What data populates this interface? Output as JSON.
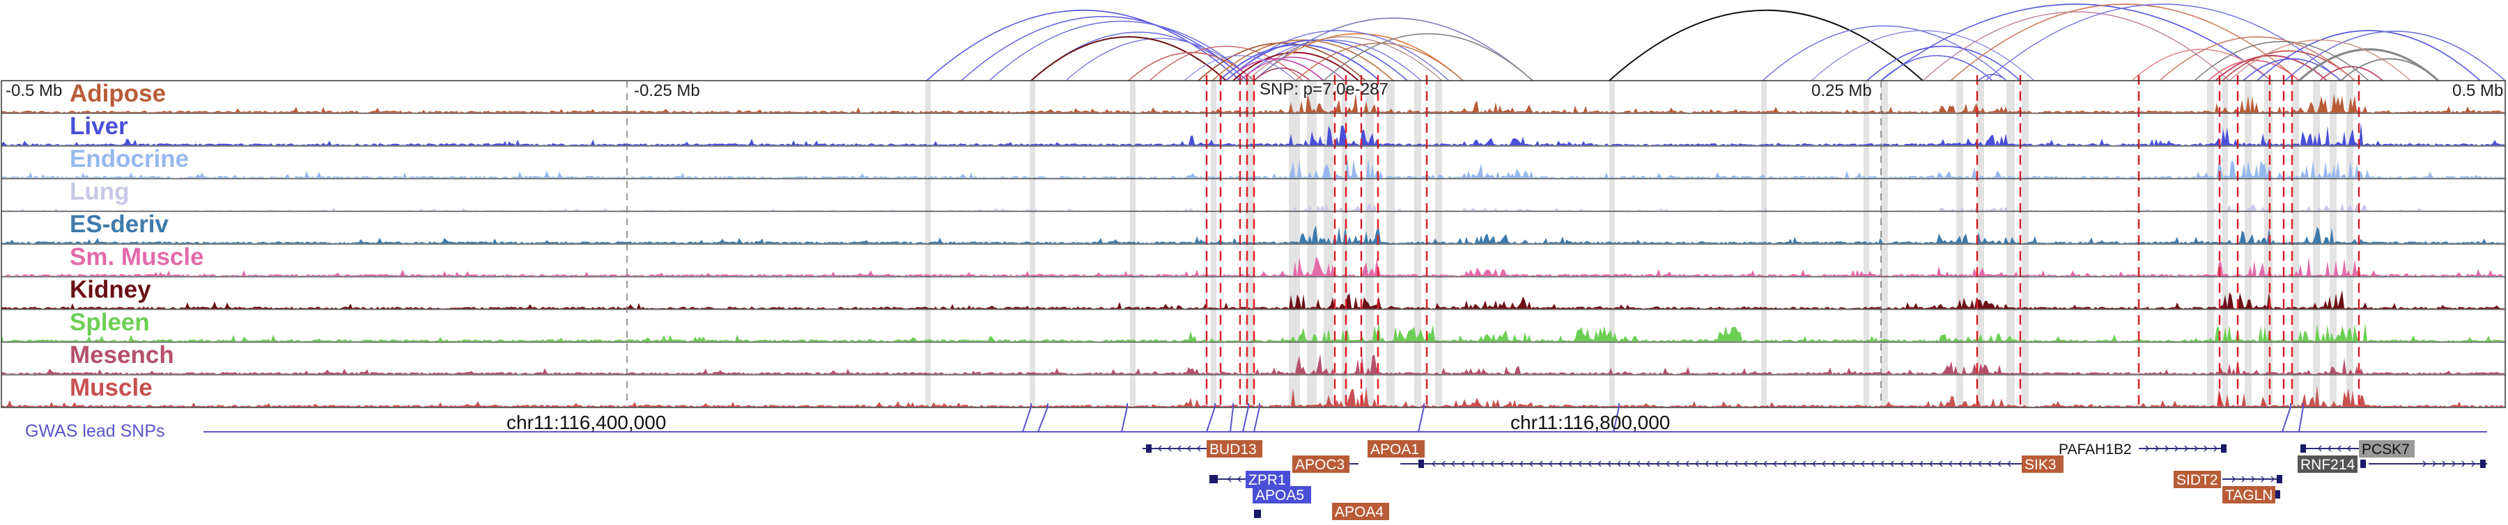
{
  "axis": {
    "ticks": [
      {
        "label": "-0.5 Mb",
        "pos": -0.5
      },
      {
        "label": "-0.25 Mb",
        "pos": -0.25
      },
      {
        "label": "0.25 Mb",
        "pos": 0.25
      },
      {
        "label": "0.5 Mb",
        "pos": 0.5
      }
    ],
    "snp_label": "SNP: p=7.0e-287"
  },
  "tracks": [
    {
      "name": "Adipose",
      "color": "#b85c38"
    },
    {
      "name": "Liver",
      "color": "#4a4fd8"
    },
    {
      "name": "Endocrine",
      "color": "#96b8ee"
    },
    {
      "name": "Lung",
      "color": "#c8c8e8"
    },
    {
      "name": "ES-deriv",
      "color": "#3d7aab"
    },
    {
      "name": "Sm. Muscle",
      "color": "#e36aa8"
    },
    {
      "name": "Kidney",
      "color": "#6b0f16"
    },
    {
      "name": "Spleen",
      "color": "#6ccf54"
    },
    {
      "name": "Mesench",
      "color": "#b5506b"
    },
    {
      "name": "Muscle",
      "color": "#c85050"
    }
  ],
  "gwas": {
    "label": "GWAS lead SNPs",
    "color": "#5a54cc"
  },
  "coordinates": [
    "chr11:116,400,000",
    "chr11:116,800,000"
  ],
  "genes": [
    {
      "name": "BUD13",
      "color": "#b85c38"
    },
    {
      "name": "APOA1",
      "color": "#b85c38"
    },
    {
      "name": "APOC3",
      "color": "#b85c38"
    },
    {
      "name": "ZPR1",
      "color": "#4a4fd8"
    },
    {
      "name": "APOA5",
      "color": "#4a4fd8"
    },
    {
      "name": "APOA4",
      "color": "#b85c38"
    },
    {
      "name": "SIK3",
      "color": "#b85c38"
    },
    {
      "name": "PAFAH1B2",
      "color": "#ffffff"
    },
    {
      "name": "PCSK7",
      "color": "#9a9a9a"
    },
    {
      "name": "RNF214",
      "color": "#555555"
    },
    {
      "name": "SIDT2",
      "color": "#b85c38"
    },
    {
      "name": "TAGLN",
      "color": "#b85c38"
    }
  ]
}
